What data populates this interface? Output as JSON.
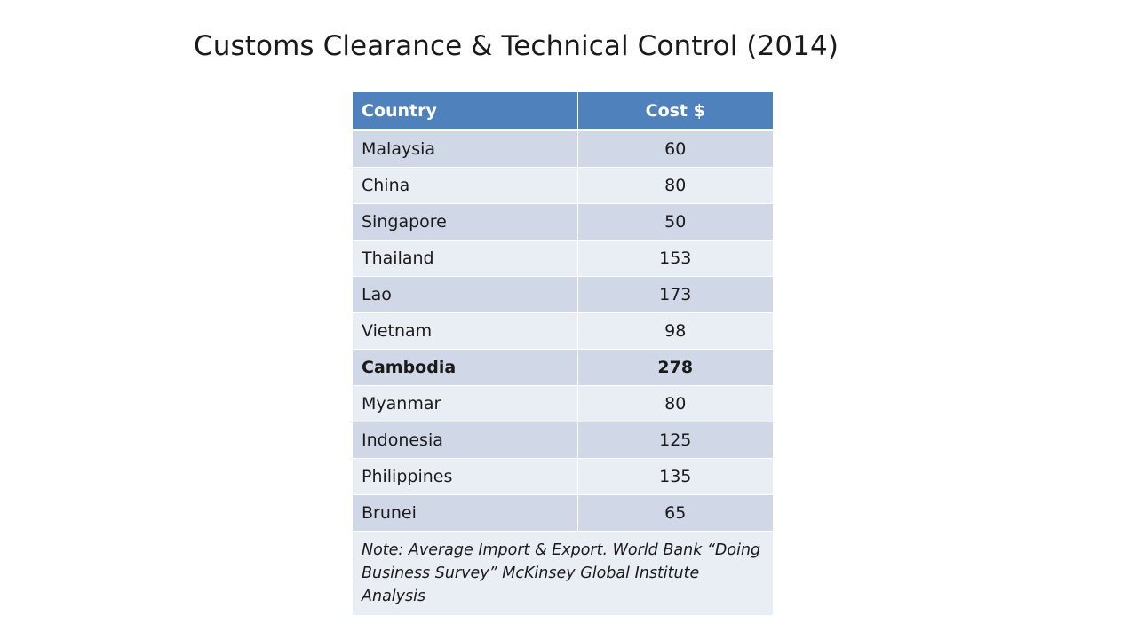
{
  "slide": {
    "title": "Customs Clearance & Technical Control (2014)"
  },
  "table": {
    "headers": {
      "country": "Country",
      "cost": "Cost $"
    },
    "rows": [
      {
        "country": "Malaysia",
        "cost": "60"
      },
      {
        "country": "China",
        "cost": "80"
      },
      {
        "country": "Singapore",
        "cost": "50"
      },
      {
        "country": "Thailand",
        "cost": "153"
      },
      {
        "country": "Lao",
        "cost": "173"
      },
      {
        "country": "Vietnam",
        "cost": "98"
      },
      {
        "country": "Cambodia",
        "cost": "278",
        "bold": true
      },
      {
        "country": "Myanmar",
        "cost": "80"
      },
      {
        "country": "Indonesia",
        "cost": "125"
      },
      {
        "country": "Philippines",
        "cost": "135"
      },
      {
        "country": "Brunei",
        "cost": "65"
      }
    ],
    "note": "Note: Average Import & Export. World Bank “Doing Business Survey” McKinsey Global Institute Analysis"
  },
  "colors": {
    "header_bg": "#4f81bd",
    "row_dark": "#d0d8e8",
    "row_light": "#e9edf4"
  }
}
